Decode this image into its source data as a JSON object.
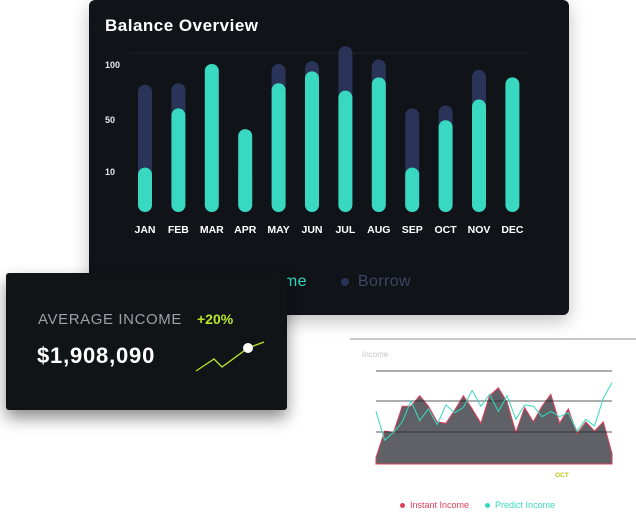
{
  "colors": {
    "income": "#38d9c0",
    "borrow": "#2a3358",
    "instant": "#e0405a",
    "predict": "#38d9c0",
    "change": "#b9e62a"
  },
  "balance": {
    "title": "Balance Overview",
    "legend": {
      "income": "Income",
      "borrow": "Borrow"
    },
    "chart_data": {
      "type": "bar",
      "categories": [
        "JAN",
        "FEB",
        "MAR",
        "APR",
        "MAY",
        "JUN",
        "JUL",
        "AUG",
        "SEP",
        "OCT",
        "NOV",
        "DEC"
      ],
      "yticks": [
        10,
        50,
        100
      ],
      "series": [
        {
          "name": "Income",
          "values": [
            30,
            70,
            100,
            56,
            87,
            95,
            82,
            91,
            30,
            62,
            76,
            91
          ]
        },
        {
          "name": "Borrow",
          "values": [
            86,
            87,
            0,
            30,
            100,
            102,
            112,
            103,
            70,
            72,
            96,
            0
          ]
        }
      ]
    }
  },
  "average": {
    "label": "AVERAGE INCOME",
    "change": "+20%",
    "value": "$1,908,090"
  },
  "income": {
    "title": "Income",
    "marker": "OCT",
    "legend": {
      "instant": "Instant Income",
      "predict": "Predict Income"
    },
    "chart_data": {
      "type": "area",
      "series": [
        {
          "name": "Instant Income",
          "values": [
            5,
            25,
            24,
            44,
            44,
            52,
            44,
            32,
            31,
            41,
            52,
            42,
            31,
            52,
            58,
            47,
            24,
            43,
            32,
            44,
            53,
            31,
            42,
            23,
            32,
            25,
            32,
            8
          ]
        },
        {
          "name": "Predict Income",
          "values": [
            40,
            18,
            24,
            32,
            48,
            33,
            42,
            30,
            45,
            39,
            43,
            56,
            44,
            53,
            40,
            52,
            34,
            45,
            44,
            36,
            40,
            36,
            39,
            25,
            34,
            29,
            50,
            62
          ]
        }
      ]
    }
  }
}
